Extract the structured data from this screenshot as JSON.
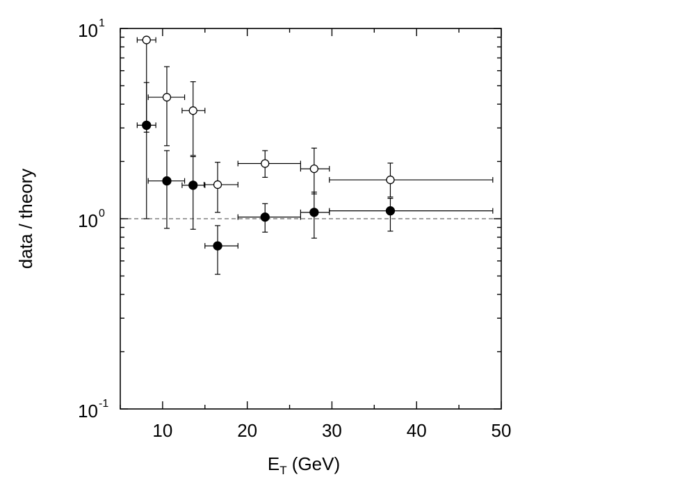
{
  "chart_data": {
    "type": "scatter",
    "title": "",
    "xlabel": "E",
    "xlabel_sub": "T",
    "xlabel_unit": " (GeV)",
    "ylabel": "data / theory",
    "xlim": [
      5,
      50
    ],
    "ylim": [
      0.1,
      10
    ],
    "yscale": "log",
    "x_ticks": [
      10,
      20,
      30,
      40,
      50
    ],
    "x_tick_labels": [
      "10",
      "20",
      "30",
      "40",
      "50"
    ],
    "y_ticks": [
      0.1,
      1,
      10
    ],
    "y_tick_labels": [
      {
        "base": "10",
        "exp": "-1"
      },
      {
        "base": "10",
        "exp": "0"
      },
      {
        "base": "10",
        "exp": "1"
      }
    ],
    "reference_line": {
      "y": 1.0,
      "style": "dashed"
    },
    "grid": false,
    "legend": "none",
    "series": [
      {
        "marker": "open-circle",
        "points": [
          {
            "x": 8.1,
            "y": 8.7,
            "xerr": [
              7.0,
              9.2
            ],
            "yerr": [
              1.0,
              8.7
            ]
          },
          {
            "x": 10.5,
            "y": 4.35,
            "xerr": [
              8.3,
              12.6
            ],
            "yerr": [
              2.42,
              6.3
            ]
          },
          {
            "x": 13.6,
            "y": 3.7,
            "xerr": [
              12.3,
              15.0
            ],
            "yerr": [
              2.15,
              5.25
            ]
          },
          {
            "x": 16.5,
            "y": 1.51,
            "xerr": [
              14.9,
              18.9
            ],
            "yerr": [
              1.08,
              1.98
            ]
          },
          {
            "x": 22.1,
            "y": 1.95,
            "xerr": [
              18.9,
              26.3
            ],
            "yerr": [
              1.65,
              2.28
            ]
          },
          {
            "x": 27.9,
            "y": 1.83,
            "xerr": [
              26.3,
              29.7
            ],
            "yerr": [
              1.35,
              2.35
            ]
          },
          {
            "x": 36.9,
            "y": 1.6,
            "xerr": [
              29.7,
              49.0
            ],
            "yerr": [
              1.3,
              1.96
            ]
          }
        ]
      },
      {
        "marker": "filled-circle",
        "points": [
          {
            "x": 8.1,
            "y": 3.1,
            "xerr": [
              7.0,
              9.2
            ],
            "yerr": [
              2.85,
              5.2
            ]
          },
          {
            "x": 10.5,
            "y": 1.58,
            "xerr": [
              8.3,
              12.6
            ],
            "yerr": [
              0.89,
              2.28
            ]
          },
          {
            "x": 13.6,
            "y": 1.5,
            "xerr": [
              12.3,
              15.0
            ],
            "yerr": [
              0.88,
              2.12
            ]
          },
          {
            "x": 16.5,
            "y": 0.72,
            "xerr": [
              15.0,
              18.9
            ],
            "yerr": [
              0.51,
              0.92
            ]
          },
          {
            "x": 22.1,
            "y": 1.02,
            "xerr": [
              18.9,
              26.3
            ],
            "yerr": [
              0.85,
              1.2
            ]
          },
          {
            "x": 27.9,
            "y": 1.08,
            "xerr": [
              26.3,
              29.7
            ],
            "yerr": [
              0.79,
              1.38
            ]
          },
          {
            "x": 36.9,
            "y": 1.1,
            "xerr": [
              29.7,
              49.0
            ],
            "yerr": [
              0.86,
              1.28
            ]
          }
        ]
      }
    ]
  }
}
